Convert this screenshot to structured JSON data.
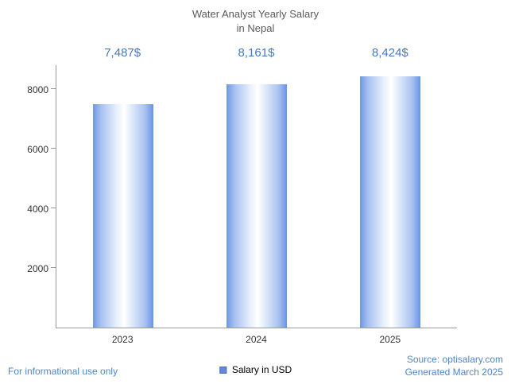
{
  "title": {
    "line1": "Water Analyst Yearly Salary",
    "line2": "in Nepal"
  },
  "chart_data": {
    "type": "bar",
    "title": "Water Analyst Yearly Salary in Nepal",
    "categories": [
      "2023",
      "2024",
      "2025"
    ],
    "values": [
      7487,
      8161,
      8424
    ],
    "value_labels": [
      "7,487$",
      "8,161$",
      "8,424$"
    ],
    "series_name": "Salary in USD",
    "xlabel": "",
    "ylabel": "",
    "ylim": [
      0,
      8800
    ],
    "yticks": [
      2000,
      4000,
      6000,
      8000
    ],
    "grid": false,
    "legend_position": "bottom"
  },
  "legend": {
    "label": "Salary in USD",
    "swatch_color": "#6787d8"
  },
  "footer": {
    "left": "For informational use only",
    "source_line1": "Source: optisalary.com",
    "source_line2": "Generated March 2025"
  },
  "colors": {
    "value_label_blue": "#4579c2",
    "footer_blue": "#4e86c6",
    "bar_edge_blue": "#6f97e6",
    "bar_center": "#ffffff",
    "axis_gray": "#9a9a9a",
    "title_gray": "#595959"
  }
}
